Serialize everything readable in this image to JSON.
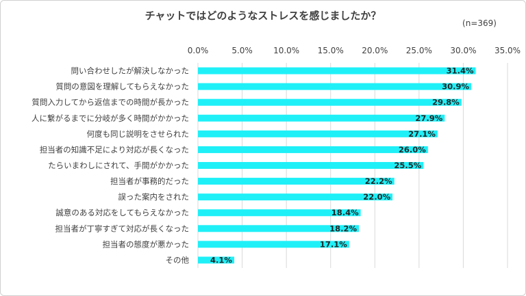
{
  "chart_data": {
    "type": "bar",
    "orientation": "horizontal",
    "title": "チャットではどのようなストレスを感じましたか？",
    "note": "(n=369)",
    "categories": [
      "問い合わせしたが解決しなかった",
      "質問の意図を理解してもらえなかった",
      "質問入力してから返信までの時間が長かった",
      "人に繋がるまでに分岐が多く時間がかかった",
      "何度も同じ説明をさせられた",
      "担当者の知識不足により対応が長くなった",
      "たらいまわしにされて、手間がかかった",
      "担当者が事務的だった",
      "誤った案内をされた",
      "誠意のある対応をしてもらえなかった",
      "担当者が丁寧すぎて対応が長くなった",
      "担当者の態度が悪かった",
      "その他"
    ],
    "values": [
      31.4,
      30.9,
      29.8,
      27.9,
      27.1,
      26.0,
      25.5,
      22.2,
      22.0,
      18.4,
      18.2,
      17.1,
      4.1
    ],
    "value_labels": [
      "31.4%",
      "30.9%",
      "29.8%",
      "27.9%",
      "27.1%",
      "26.0%",
      "25.5%",
      "22.2%",
      "22.0%",
      "18.4%",
      "18.2%",
      "17.1%",
      "4.1%"
    ],
    "xlim": [
      0,
      35
    ],
    "x_ticks": [
      0,
      5,
      10,
      15,
      20,
      25,
      30,
      35
    ],
    "x_tick_labels": [
      "0.0%",
      "5.0%",
      "10.0%",
      "15.0%",
      "20.0%",
      "25.0%",
      "30.0%",
      "35.0%"
    ],
    "xlabel": "",
    "ylabel": "",
    "grid": true,
    "legend": false,
    "bar_color": "#1ff0f8"
  }
}
